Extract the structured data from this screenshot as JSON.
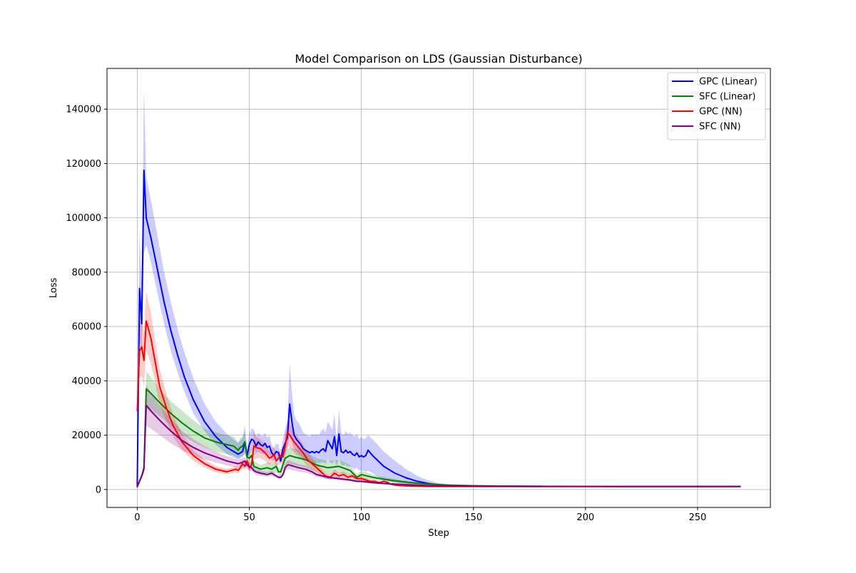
{
  "chart_data": {
    "type": "line",
    "title": "Model Comparison on LDS (Gaussian Disturbance)",
    "xlabel": "Step",
    "ylabel": "Loss",
    "xlim": [
      -13.5,
      282.5
    ],
    "ylim": [
      -6600,
      155000
    ],
    "xticks": [
      0,
      50,
      100,
      150,
      200,
      250
    ],
    "yticks": [
      0,
      20000,
      40000,
      60000,
      80000,
      100000,
      120000,
      140000
    ],
    "grid": true,
    "legend_position": "top-right",
    "shaded_band": "mean ± spread",
    "series": [
      {
        "name": "GPC (Linear)",
        "color": "#0000ff",
        "x": [
          0,
          1,
          2,
          3,
          4,
          6,
          8,
          10,
          12,
          15,
          18,
          21,
          25,
          30,
          35,
          40,
          45,
          47,
          48,
          49,
          50,
          51,
          52,
          53,
          54,
          55,
          56,
          57,
          58,
          59,
          60,
          61,
          62,
          63,
          64,
          65,
          66,
          67,
          68,
          69,
          70,
          71,
          72,
          73,
          74,
          75,
          76,
          77,
          78,
          79,
          80,
          81,
          82,
          83,
          84,
          85,
          86,
          87,
          88,
          89,
          90,
          91,
          92,
          93,
          94,
          95,
          96,
          97,
          98,
          99,
          100,
          101,
          102,
          103,
          105,
          110,
          115,
          120,
          125,
          130,
          135,
          140,
          145,
          150,
          160,
          180,
          200,
          220,
          240,
          260,
          269
        ],
        "y": [
          1500,
          74000,
          61000,
          117500,
          100000,
          93000,
          85000,
          77000,
          69000,
          58500,
          49500,
          41500,
          33000,
          25000,
          19500,
          15500,
          13000,
          14000,
          17500,
          12500,
          16500,
          18500,
          18000,
          16000,
          17500,
          16500,
          16000,
          17000,
          15500,
          16000,
          13500,
          12500,
          14000,
          13500,
          10500,
          15000,
          17000,
          19000,
          31500,
          25000,
          20000,
          18500,
          17500,
          16500,
          15000,
          14500,
          14000,
          13500,
          14000,
          13500,
          14000,
          13500,
          14500,
          15000,
          14000,
          18000,
          16500,
          15000,
          19500,
          12500,
          20500,
          14000,
          13500,
          14500,
          13500,
          14000,
          13000,
          12500,
          13500,
          12000,
          12500,
          12000,
          12500,
          14500,
          12500,
          8500,
          6000,
          4300,
          3000,
          2200,
          1700,
          1400,
          1300,
          1250,
          1200,
          1150,
          1150,
          1100,
          1100,
          1100,
          1100
        ],
        "lower": [
          1500,
          55000,
          50000,
          87000,
          90000,
          84000,
          76000,
          68500,
          61000,
          51000,
          43000,
          36000,
          28000,
          21500,
          16500,
          13000,
          11000,
          12000,
          13000,
          11000,
          13000,
          14500,
          14500,
          13500,
          14000,
          13500,
          13000,
          13500,
          12500,
          12500,
          11000,
          10500,
          11500,
          11000,
          9000,
          12000,
          13500,
          15000,
          20000,
          17500,
          15000,
          14000,
          13000,
          12500,
          11500,
          11000,
          10500,
          10000,
          10000,
          9500,
          10000,
          9500,
          10000,
          10000,
          9500,
          11000,
          10000,
          9500,
          11000,
          8500,
          11500,
          9000,
          9000,
          9000,
          8500,
          8500,
          8000,
          7500,
          8000,
          7000,
          7000,
          7000,
          6500,
          7000,
          6000,
          3500,
          2500,
          2000,
          1500,
          1300,
          1150,
          1100,
          1100,
          1100,
          1100,
          1100,
          1100,
          1050,
          1050,
          1050,
          1050
        ],
        "upper": [
          1500,
          95000,
          75000,
          148000,
          115000,
          107000,
          98000,
          89000,
          80000,
          69000,
          59000,
          50500,
          41000,
          31500,
          25000,
          20500,
          17000,
          19000,
          23500,
          15000,
          20500,
          22500,
          22000,
          19500,
          21000,
          20000,
          19500,
          21000,
          19000,
          20000,
          16500,
          15000,
          17000,
          16500,
          12500,
          18500,
          22000,
          25000,
          46500,
          36000,
          27500,
          25500,
          24500,
          23000,
          21000,
          20500,
          20000,
          19500,
          20500,
          20000,
          20500,
          20000,
          21500,
          22500,
          21000,
          25000,
          23500,
          22000,
          28000,
          18000,
          29500,
          21000,
          20000,
          21500,
          20500,
          21000,
          20000,
          19500,
          20500,
          18500,
          19500,
          18500,
          19000,
          20000,
          18500,
          14000,
          10500,
          7500,
          5000,
          3300,
          2300,
          1700,
          1500,
          1400,
          1300,
          1250,
          1200,
          1200,
          1150,
          1150,
          1150
        ]
      },
      {
        "name": "SFC (Linear)",
        "color": "#008000",
        "x": [
          0,
          2,
          3,
          4,
          6,
          10,
          15,
          20,
          25,
          30,
          35,
          40,
          43,
          45,
          46,
          47,
          48,
          49,
          50,
          51,
          52,
          55,
          58,
          60,
          62,
          63,
          64,
          65,
          66,
          67,
          68,
          70,
          75,
          80,
          85,
          90,
          95,
          98,
          100,
          105,
          110,
          115,
          120,
          125,
          130,
          140,
          150,
          160,
          180,
          200,
          220,
          240,
          260,
          269
        ],
        "y": [
          1000,
          5000,
          8000,
          37000,
          35500,
          32000,
          28000,
          24500,
          21500,
          19000,
          17500,
          16500,
          16000,
          14500,
          15500,
          16000,
          17500,
          12000,
          11500,
          12500,
          8500,
          7500,
          8000,
          7500,
          8500,
          6500,
          6500,
          9000,
          11500,
          12000,
          12500,
          12000,
          11000,
          9000,
          8000,
          8500,
          7000,
          4500,
          5500,
          4500,
          3800,
          3200,
          2700,
          2300,
          2000,
          1600,
          1400,
          1300,
          1200,
          1150,
          1100,
          1100,
          1100,
          1100
        ],
        "lower": [
          1000,
          4000,
          6500,
          30000,
          29500,
          27000,
          23500,
          20000,
          17500,
          15500,
          14000,
          13000,
          12500,
          11500,
          12000,
          12500,
          13500,
          9500,
          9000,
          9500,
          6500,
          6000,
          6000,
          5500,
          6500,
          5000,
          5000,
          7000,
          8500,
          9000,
          9500,
          9000,
          8000,
          6500,
          5500,
          6000,
          5000,
          3500,
          4000,
          3500,
          3000,
          2500,
          2100,
          1800,
          1600,
          1350,
          1250,
          1200,
          1150,
          1100,
          1050,
          1050,
          1050,
          1050
        ],
        "upper": [
          1000,
          6000,
          9500,
          43500,
          41500,
          37000,
          32500,
          29000,
          25500,
          22500,
          21000,
          20000,
          19500,
          17500,
          19000,
          19500,
          21500,
          14500,
          14000,
          15500,
          10500,
          9000,
          10000,
          9500,
          10500,
          8000,
          8000,
          11000,
          14500,
          15000,
          15500,
          15000,
          14000,
          11500,
          10500,
          11000,
          9000,
          5500,
          7000,
          5500,
          4600,
          3900,
          3300,
          2800,
          2400,
          1850,
          1550,
          1400,
          1250,
          1200,
          1150,
          1150,
          1150,
          1150
        ]
      },
      {
        "name": "GPC (NN)",
        "color": "#ff0000",
        "x": [
          0,
          1,
          2,
          3,
          4,
          6,
          8,
          10,
          13,
          16,
          20,
          25,
          30,
          35,
          40,
          44,
          45,
          46,
          47,
          48,
          49,
          50,
          51,
          52,
          53,
          55,
          57,
          59,
          60,
          61,
          62,
          63,
          64,
          65,
          66,
          67,
          68,
          70,
          72,
          74,
          76,
          78,
          80,
          82,
          84,
          86,
          88,
          90,
          92,
          94,
          96,
          98,
          100,
          102,
          104,
          106,
          108,
          110,
          112,
          113,
          114,
          116,
          120,
          125,
          130,
          140,
          150,
          160,
          180,
          200,
          220,
          240,
          260,
          269
        ],
        "y": [
          29000,
          51000,
          52500,
          47500,
          62000,
          56000,
          47000,
          38000,
          30000,
          23500,
          17500,
          12500,
          9500,
          7500,
          6500,
          7500,
          7000,
          8000,
          9500,
          8500,
          10500,
          8000,
          9000,
          16000,
          15500,
          15000,
          13500,
          11500,
          12000,
          13000,
          10500,
          11500,
          12500,
          12000,
          16000,
          21000,
          20000,
          17500,
          15500,
          13500,
          11000,
          9500,
          8000,
          6500,
          5000,
          4500,
          6000,
          5000,
          5500,
          4500,
          5000,
          4000,
          4000,
          3500,
          3000,
          3000,
          2500,
          3000,
          2500,
          2000,
          1800,
          1500,
          1300,
          1200,
          1150,
          1100,
          1100,
          1100,
          1100,
          1100,
          1100,
          1100,
          1100,
          1100
        ],
        "lower": [
          20000,
          41000,
          42000,
          38000,
          51000,
          46500,
          39000,
          31500,
          25000,
          19500,
          14500,
          10500,
          8000,
          6300,
          5500,
          6300,
          5800,
          6500,
          7800,
          7000,
          8500,
          6500,
          7500,
          11000,
          11500,
          11500,
          10500,
          9000,
          9500,
          10000,
          8500,
          9000,
          10000,
          9500,
          12000,
          16000,
          15500,
          13500,
          12000,
          10500,
          8500,
          7500,
          6300,
          5000,
          4000,
          3600,
          4600,
          3900,
          4300,
          3600,
          3900,
          3200,
          3200,
          2800,
          2500,
          2500,
          2100,
          2500,
          2100,
          1700,
          1550,
          1300,
          1150,
          1100,
          1050,
          1050,
          1050,
          1050,
          1050,
          1050,
          1050,
          1050,
          1050,
          1050
        ],
        "upper": [
          38000,
          61000,
          63000,
          57000,
          73000,
          65500,
          55000,
          44500,
          35000,
          27500,
          20500,
          14500,
          11000,
          8700,
          7500,
          8700,
          8200,
          9500,
          11200,
          10000,
          12500,
          9500,
          10500,
          21500,
          19500,
          18500,
          16500,
          14000,
          14500,
          16000,
          12500,
          14000,
          15000,
          14500,
          20000,
          26000,
          24500,
          21500,
          19000,
          16500,
          13500,
          11500,
          9700,
          8000,
          6000,
          5400,
          7400,
          6100,
          6700,
          5400,
          6100,
          4800,
          4800,
          4200,
          3500,
          3500,
          2900,
          3500,
          2900,
          2300,
          2050,
          1700,
          1450,
          1300,
          1250,
          1150,
          1150,
          1150,
          1150,
          1150,
          1150,
          1150,
          1150,
          1150
        ]
      },
      {
        "name": "SFC (NN)",
        "color": "#800080",
        "x": [
          0,
          2,
          3,
          4,
          6,
          10,
          15,
          20,
          25,
          30,
          35,
          40,
          45,
          47,
          48,
          49,
          50,
          51,
          52,
          53,
          55,
          58,
          60,
          62,
          63,
          64,
          65,
          66,
          67,
          68,
          70,
          72,
          75,
          78,
          80,
          85,
          90,
          95,
          98,
          100,
          105,
          110,
          115,
          120,
          125,
          130,
          140,
          150,
          160,
          180,
          200,
          220,
          240,
          260,
          269
        ],
        "y": [
          1000,
          5000,
          7500,
          31000,
          29000,
          25500,
          21500,
          18000,
          15500,
          13500,
          12000,
          10500,
          9500,
          10000,
          10500,
          9000,
          8500,
          8000,
          7000,
          6500,
          6000,
          5500,
          6000,
          5000,
          4500,
          4500,
          5500,
          8000,
          9000,
          9000,
          8500,
          8000,
          7500,
          6500,
          5500,
          4500,
          4000,
          3500,
          3000,
          3000,
          2500,
          2200,
          2000,
          1800,
          1600,
          1400,
          1300,
          1200,
          1150,
          1100,
          1100,
          1100,
          1100,
          1100,
          1100
        ],
        "lower": [
          1000,
          4000,
          6000,
          23500,
          22500,
          20000,
          17000,
          14500,
          12500,
          11000,
          10000,
          8800,
          8000,
          8500,
          9000,
          7500,
          7000,
          6800,
          6000,
          5500,
          5000,
          4700,
          5000,
          4300,
          3900,
          3900,
          4600,
          6500,
          7300,
          7400,
          7000,
          6600,
          6200,
          5400,
          4600,
          3800,
          3400,
          3000,
          2600,
          2600,
          2200,
          1900,
          1700,
          1550,
          1400,
          1250,
          1200,
          1150,
          1100,
          1050,
          1050,
          1050,
          1050,
          1050,
          1050
        ],
        "upper": [
          1000,
          6000,
          9000,
          38500,
          35500,
          31000,
          26000,
          21500,
          18500,
          16000,
          14000,
          12200,
          11000,
          11500,
          12000,
          10500,
          10000,
          9200,
          8000,
          7500,
          7000,
          6300,
          7000,
          5700,
          5100,
          5100,
          6400,
          9500,
          10700,
          10600,
          10000,
          9400,
          8800,
          7600,
          6400,
          5200,
          4600,
          4000,
          3400,
          3400,
          2800,
          2500,
          2300,
          2050,
          1800,
          1550,
          1400,
          1250,
          1200,
          1150,
          1150,
          1150,
          1150,
          1150,
          1150
        ]
      }
    ]
  }
}
